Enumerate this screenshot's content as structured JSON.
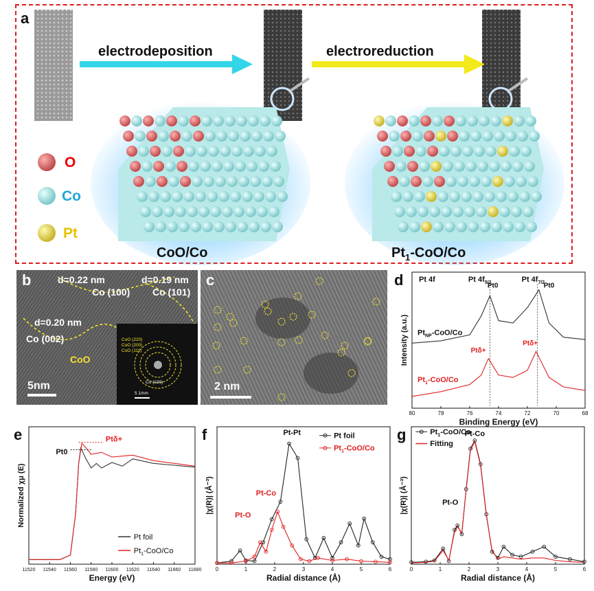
{
  "panel_labels": {
    "a": "a",
    "b": "b",
    "c": "c",
    "d": "d",
    "e": "e",
    "f": "f",
    "g": "g"
  },
  "panel_a": {
    "step1": "electrodeposition",
    "step2": "electroreduction",
    "caption1": "CoO/Co",
    "caption2_main": "Pt",
    "caption2_sub": "1",
    "caption2_rest": "-CoO/Co",
    "legend": [
      {
        "label": "O",
        "color": "#e60000",
        "ball": "#e06a6a"
      },
      {
        "label": "Co",
        "color": "#1fa7d6",
        "ball": "#8ee0e6"
      },
      {
        "label": "Pt",
        "color": "#e6c200",
        "ball": "#eadc4a"
      }
    ],
    "arrow1_color": "#33d6e8",
    "arrow2_color": "#f2ea1a"
  },
  "panel_b": {
    "d1": "d=0.22 nm",
    "d2": "d=0.19 nm",
    "d3": "d=0.20 nm",
    "plane1": "Co (100)",
    "plane2": "Co (101)",
    "plane3": "Co (002)",
    "coo": "CoO",
    "scale": "5nm",
    "fft_labels": [
      "CoO (220)",
      "CoO (200)",
      "CoO (111)",
      "Co (100)"
    ],
    "fft_scale": "5 1/nm"
  },
  "panel_c": {
    "scale": "2 nm"
  },
  "chart_data": [
    {
      "id": "d",
      "type": "line",
      "title": "Pt 4f",
      "xlabel": "Binding Energy (eV)",
      "ylabel": "Intensity (a.u.)",
      "xlim": [
        80,
        68
      ],
      "xticks": [
        80,
        78,
        76,
        74,
        72,
        70,
        68
      ],
      "peak_labels": [
        "Pt 4f5/2",
        "Pt 4f7/2"
      ],
      "series": [
        {
          "name": "PtNP-CoO/Co",
          "name_main": "Pt",
          "name_sub": "NP",
          "name_rest": "-CoO/Co",
          "color": "#333333",
          "x": [
            80,
            78,
            76,
            75.2,
            74.6,
            74.0,
            73.0,
            72.0,
            71.2,
            70.5,
            69.5,
            68
          ],
          "y": [
            0.55,
            0.57,
            0.62,
            0.78,
            0.95,
            0.74,
            0.72,
            0.85,
            1.0,
            0.72,
            0.6,
            0.58
          ],
          "peak_labels": [
            "Pt0",
            "Pt0"
          ]
        },
        {
          "name": "Pt1-CoO/Co",
          "name_main": "Pt",
          "name_sub": "1",
          "name_rest": "-CoO/Co",
          "color": "#e02020",
          "x": [
            80,
            78,
            76,
            75.2,
            74.7,
            74.0,
            73.0,
            72.0,
            71.4,
            70.5,
            69.5,
            68
          ],
          "y": [
            0.1,
            0.14,
            0.2,
            0.28,
            0.42,
            0.28,
            0.26,
            0.32,
            0.48,
            0.26,
            0.18,
            0.15
          ],
          "peak_labels": [
            "Ptδ+",
            "Ptδ+"
          ]
        }
      ],
      "ref_lines": [
        74.6,
        71.3
      ]
    },
    {
      "id": "e",
      "type": "line",
      "xlabel": "Energy (eV)",
      "ylabel": "Normalized χμ (E)",
      "xlim": [
        11520,
        11680
      ],
      "xticks": [
        11520,
        11540,
        11560,
        11580,
        11600,
        11620,
        11640,
        11660,
        11680
      ],
      "annotations": [
        "Pt0",
        "Ptδ+"
      ],
      "series": [
        {
          "name": "Pt foil",
          "color": "#333333",
          "x": [
            11520,
            11550,
            11560,
            11565,
            11568,
            11570,
            11575,
            11580,
            11585,
            11590,
            11600,
            11610,
            11620,
            11640,
            11660,
            11680
          ],
          "y": [
            0.0,
            0.0,
            0.05,
            0.5,
            1.05,
            1.22,
            1.1,
            1.0,
            1.05,
            1.0,
            1.06,
            1.02,
            1.1,
            1.05,
            1.03,
            1.01
          ]
        },
        {
          "name": "Pt1-CoO/Co",
          "name_main": "Pt",
          "name_sub": "1",
          "name_rest": "-CoO/Co",
          "color": "#e02020",
          "x": [
            11520,
            11550,
            11560,
            11565,
            11568,
            11571,
            11575,
            11580,
            11590,
            11600,
            11610,
            11620,
            11640,
            11660,
            11680
          ],
          "y": [
            0.0,
            0.0,
            0.05,
            0.5,
            1.05,
            1.27,
            1.22,
            1.15,
            1.17,
            1.12,
            1.13,
            1.14,
            1.08,
            1.05,
            1.02
          ]
        }
      ]
    },
    {
      "id": "f",
      "type": "line",
      "xlabel": "Radial distance (Å)",
      "ylabel": "|χ(R)| (Å⁻³)",
      "xlim": [
        0,
        6
      ],
      "xticks": [
        0,
        1,
        2,
        3,
        4,
        5,
        6
      ],
      "annotations": [
        "Pt-Pt",
        "Pt-Co",
        "Pt-O"
      ],
      "series": [
        {
          "name": "Pt foil",
          "color": "#222222",
          "x": [
            0,
            0.5,
            0.8,
            1.0,
            1.3,
            1.6,
            1.9,
            2.2,
            2.5,
            2.8,
            3.1,
            3.4,
            3.7,
            4.0,
            4.3,
            4.6,
            4.9,
            5.1,
            5.4,
            5.7,
            6.0
          ],
          "y": [
            0.02,
            0.05,
            0.22,
            0.06,
            0.05,
            0.35,
            0.72,
            1.0,
            1.93,
            1.7,
            0.4,
            0.1,
            0.42,
            0.1,
            0.35,
            0.65,
            0.3,
            0.73,
            0.35,
            0.12,
            0.08
          ]
        },
        {
          "name": "Pt1-CoO/Co",
          "name_main": "Pt",
          "name_sub": "1",
          "name_rest": "-CoO/Co",
          "color": "#e02020",
          "x": [
            0,
            0.5,
            1.0,
            1.3,
            1.5,
            1.7,
            1.9,
            2.1,
            2.3,
            2.6,
            2.9,
            3.2,
            3.5,
            4.0,
            4.5,
            5.0,
            5.5,
            6.0
          ],
          "y": [
            0.02,
            0.02,
            0.05,
            0.12,
            0.35,
            0.2,
            0.55,
            0.84,
            0.6,
            0.3,
            0.08,
            0.05,
            0.1,
            0.06,
            0.08,
            0.05,
            0.04,
            0.03
          ]
        }
      ]
    },
    {
      "id": "g",
      "type": "line",
      "xlabel": "Radial distance (Å)",
      "ylabel": "|χ(R)| (Å⁻³)",
      "xlim": [
        0,
        6
      ],
      "xticks": [
        0,
        1,
        2,
        3,
        4,
        5,
        6
      ],
      "annotations": [
        "Pt-Co",
        "Pt-O"
      ],
      "series": [
        {
          "name": "Pt1-CoO/Co",
          "name_main": "Pt",
          "name_sub": "1",
          "name_rest": "-CoO/Co",
          "color": "#222222",
          "marker": "circle",
          "x": [
            0,
            0.5,
            0.8,
            1.1,
            1.3,
            1.5,
            1.6,
            1.75,
            1.9,
            2.05,
            2.2,
            2.4,
            2.6,
            2.8,
            3.0,
            3.2,
            3.5,
            3.8,
            4.2,
            4.6,
            5.0,
            5.5,
            6.0
          ],
          "y": [
            0.03,
            0.04,
            0.06,
            0.25,
            0.05,
            0.55,
            0.62,
            0.48,
            1.2,
            1.85,
            1.98,
            1.6,
            0.8,
            0.2,
            0.1,
            0.28,
            0.15,
            0.12,
            0.2,
            0.28,
            0.12,
            0.08,
            0.04
          ]
        },
        {
          "name": "Fitting",
          "color": "#e02020",
          "x": [
            0,
            0.5,
            0.8,
            1.1,
            1.3,
            1.5,
            1.6,
            1.75,
            1.9,
            2.05,
            2.2,
            2.4,
            2.6,
            2.8,
            3.0,
            3.2,
            3.5,
            3.8,
            4.2,
            4.6,
            5.0,
            5.5,
            6.0
          ],
          "y": [
            0.02,
            0.03,
            0.05,
            0.22,
            0.06,
            0.52,
            0.6,
            0.5,
            1.18,
            1.83,
            1.96,
            1.58,
            0.78,
            0.22,
            0.08,
            0.12,
            0.1,
            0.08,
            0.1,
            0.1,
            0.06,
            0.04,
            0.03
          ]
        }
      ]
    }
  ]
}
